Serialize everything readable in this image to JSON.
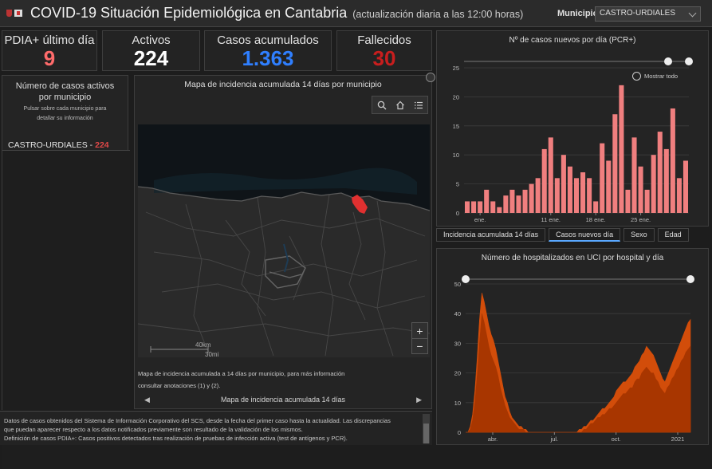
{
  "header": {
    "title": "COVID-19 Situación Epidemiológica en Cantabria",
    "subtitle": "(actualización diaria a las 12:00 horas)",
    "municipio_label": "Municipio",
    "municipio_value": "CASTRO-URDIALES"
  },
  "kpis": [
    {
      "label": "PDIA+ último día",
      "value": "9",
      "color": "#ff6b6b"
    },
    {
      "label": "Activos",
      "value": "224",
      "color": "#ffffff"
    },
    {
      "label": "Casos acumulados",
      "value": "1.363",
      "color": "#2f7fff"
    },
    {
      "label": "Fallecidos",
      "value": "30",
      "color": "#c81e1e"
    }
  ],
  "active_panel": {
    "title": "Número de casos activos por municipio",
    "hint": "Pulsar sobre cada municipio para detallar su información",
    "row_name": "CASTRO-URDIALES",
    "row_sep": " - ",
    "row_value": "224"
  },
  "map": {
    "title": "Mapa de incidencia acumulada 14 días por municipio",
    "scale_km": "40km",
    "scale_mi": "30mi",
    "caption_line1": "Mapa de incidencia acumulada a 14 días por municipio, para más información",
    "caption_line2": "consultar anotaciones (1) y (2).",
    "footer_label": "Mapa de incidencia acumulada 14 días",
    "zoom_in": "+",
    "zoom_out": "−"
  },
  "chart1_panel": {
    "show_all": "Mostrar todo"
  },
  "tabs": [
    {
      "label": "Incidencia acumulada 14 días",
      "active": false
    },
    {
      "label": "Casos nuevos día",
      "active": true
    },
    {
      "label": "Sexo",
      "active": false
    },
    {
      "label": "Edad",
      "active": false
    }
  ],
  "chart_data": [
    {
      "type": "bar",
      "title": "Nº de casos nuevos por día (PCR+)",
      "ylim": [
        0,
        25
      ],
      "yticks": [
        0,
        5,
        10,
        15,
        20,
        25
      ],
      "xticklabels": [
        {
          "label": "ene.",
          "index": 2
        },
        {
          "label": "11 ene.",
          "index": 13
        },
        {
          "label": "18 ene.",
          "index": 20
        },
        {
          "label": "25 ene.",
          "index": 27
        }
      ],
      "values": [
        2,
        2,
        2,
        4,
        2,
        1,
        3,
        4,
        3,
        4,
        5,
        6,
        11,
        13,
        6,
        10,
        8,
        6,
        7,
        6,
        2,
        12,
        9,
        17,
        22,
        4,
        13,
        8,
        4,
        10,
        14,
        11,
        18,
        6,
        9
      ],
      "color": "#f07f7f",
      "grid": true
    },
    {
      "type": "area",
      "title": "Número de hospitalizados en UCI por hospital y día",
      "ylim": [
        0,
        50
      ],
      "yticks": [
        0,
        10,
        20,
        30,
        40,
        50
      ],
      "xticklabels": [
        "abr.",
        "jul.",
        "oct.",
        "2021"
      ],
      "series": [
        {
          "values": [
            0,
            0,
            2,
            6,
            14,
            25,
            38,
            47,
            44,
            40,
            36,
            33,
            31,
            28,
            24,
            20,
            16,
            12,
            10,
            7,
            5,
            4,
            3,
            2,
            2,
            1,
            1,
            0,
            0,
            0,
            0,
            0,
            0,
            0,
            0,
            0,
            0,
            0,
            0,
            0,
            0,
            0,
            0,
            0,
            0,
            0,
            0,
            0,
            0,
            1,
            1,
            2,
            2,
            3,
            4,
            4,
            5,
            6,
            7,
            8,
            8,
            9,
            10,
            11,
            12,
            14,
            15,
            16,
            17,
            17,
            18,
            19,
            20,
            22,
            23,
            24,
            26,
            27,
            29,
            28,
            27,
            26,
            24,
            22,
            20,
            18,
            17,
            19,
            21,
            23,
            25,
            27,
            29,
            31,
            33,
            35,
            37,
            38
          ],
          "color": "#d24d0a"
        },
        {
          "values": [
            0,
            0,
            1,
            4,
            10,
            19,
            30,
            40,
            37,
            33,
            29,
            26,
            24,
            22,
            19,
            15,
            12,
            9,
            7,
            5,
            4,
            3,
            2,
            1,
            1,
            1,
            0,
            0,
            0,
            0,
            0,
            0,
            0,
            0,
            0,
            0,
            0,
            0,
            0,
            0,
            0,
            0,
            0,
            0,
            0,
            0,
            0,
            0,
            0,
            0,
            0,
            1,
            1,
            2,
            3,
            3,
            4,
            5,
            5,
            6,
            6,
            7,
            8,
            8,
            9,
            10,
            11,
            12,
            13,
            13,
            14,
            15,
            15,
            17,
            18,
            18,
            20,
            21,
            22,
            21,
            20,
            20,
            18,
            17,
            15,
            14,
            13,
            15,
            16,
            18,
            19,
            21,
            22,
            24,
            25,
            27,
            28,
            29
          ],
          "color": "#a83600"
        }
      ],
      "grid": true
    }
  ],
  "footer": {
    "line1": "Datos de casos obtenidos del Sistema de Información Corporativo del SCS, desde la fecha del primer caso hasta la actualidad. Las discrepancias",
    "line2": "que puedan aparecer respecto a los datos notificados previamente son resultado de la validación de los mismos.",
    "line3": "Definición de casos PDIA+: Casos positivos detectados tras realización de pruebas de infección activa (test de antígenos y PCR)."
  }
}
